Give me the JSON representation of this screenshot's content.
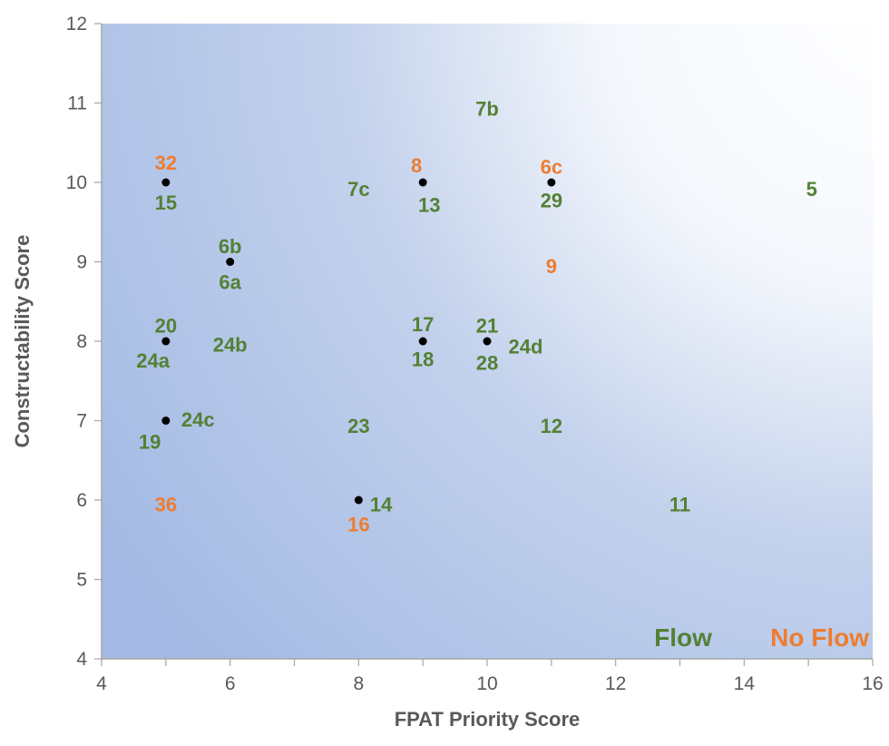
{
  "chart_data": {
    "type": "scatter",
    "title": "",
    "xlabel": "FPAT Priority Score",
    "ylabel": "Constructability Score",
    "xlim": [
      4,
      16
    ],
    "ylim": [
      4,
      12
    ],
    "x_ticks": [
      "4",
      "6",
      "8",
      "10",
      "12",
      "14",
      "16"
    ],
    "y_ticks": [
      "4",
      "5",
      "6",
      "7",
      "8",
      "9",
      "10",
      "11",
      "12"
    ],
    "grid": false,
    "colors": {
      "flow": "#538135",
      "no_flow": "#ED7D31",
      "marker": "#000000",
      "axis": "#A6A6A6",
      "text": "#595959"
    },
    "markers": [
      {
        "x": 5,
        "y": 10
      },
      {
        "x": 6,
        "y": 9
      },
      {
        "x": 5,
        "y": 8
      },
      {
        "x": 5,
        "y": 7
      },
      {
        "x": 9,
        "y": 10
      },
      {
        "x": 11,
        "y": 10
      },
      {
        "x": 9,
        "y": 8
      },
      {
        "x": 10,
        "y": 8
      },
      {
        "x": 8,
        "y": 6
      }
    ],
    "labels": [
      {
        "text": "7b",
        "x": 10,
        "y": 10.93,
        "series": "flow"
      },
      {
        "text": "32",
        "x": 5,
        "y": 10.25,
        "series": "no_flow"
      },
      {
        "text": "15",
        "x": 5,
        "y": 9.75,
        "series": "flow"
      },
      {
        "text": "7c",
        "x": 8,
        "y": 9.92,
        "series": "flow"
      },
      {
        "text": "8",
        "x": 8.9,
        "y": 10.22,
        "series": "no_flow"
      },
      {
        "text": "13",
        "x": 9.1,
        "y": 9.72,
        "series": "flow"
      },
      {
        "text": "6c",
        "x": 11,
        "y": 10.2,
        "series": "no_flow"
      },
      {
        "text": "29",
        "x": 11,
        "y": 9.78,
        "series": "flow"
      },
      {
        "text": "5",
        "x": 15.05,
        "y": 9.92,
        "series": "flow"
      },
      {
        "text": "6b",
        "x": 6,
        "y": 9.2,
        "series": "flow"
      },
      {
        "text": "6a",
        "x": 6,
        "y": 8.75,
        "series": "flow"
      },
      {
        "text": "9",
        "x": 11,
        "y": 8.95,
        "series": "no_flow"
      },
      {
        "text": "20",
        "x": 5,
        "y": 8.2,
        "series": "flow"
      },
      {
        "text": "24a",
        "x": 4.8,
        "y": 7.76,
        "series": "flow"
      },
      {
        "text": "24b",
        "x": 6,
        "y": 7.96,
        "series": "flow"
      },
      {
        "text": "17",
        "x": 9,
        "y": 8.22,
        "series": "flow"
      },
      {
        "text": "18",
        "x": 9,
        "y": 7.78,
        "series": "flow"
      },
      {
        "text": "21",
        "x": 10,
        "y": 8.2,
        "series": "flow"
      },
      {
        "text": "24d",
        "x": 10.6,
        "y": 7.94,
        "series": "flow"
      },
      {
        "text": "28",
        "x": 10,
        "y": 7.73,
        "series": "flow"
      },
      {
        "text": "24c",
        "x": 5.5,
        "y": 7.02,
        "series": "flow"
      },
      {
        "text": "19",
        "x": 4.75,
        "y": 6.74,
        "series": "flow"
      },
      {
        "text": "23",
        "x": 8,
        "y": 6.94,
        "series": "flow"
      },
      {
        "text": "12",
        "x": 11,
        "y": 6.94,
        "series": "flow"
      },
      {
        "text": "36",
        "x": 5,
        "y": 5.95,
        "series": "no_flow"
      },
      {
        "text": "14",
        "x": 8.35,
        "y": 5.95,
        "series": "flow"
      },
      {
        "text": "16",
        "x": 8,
        "y": 5.7,
        "series": "no_flow"
      },
      {
        "text": "11",
        "x": 13,
        "y": 5.95,
        "series": "flow"
      }
    ],
    "legend": {
      "placement": "bottom-right",
      "entries": [
        {
          "text": "Flow",
          "series": "flow"
        },
        {
          "text": "No Flow",
          "series": "no_flow"
        }
      ]
    }
  }
}
